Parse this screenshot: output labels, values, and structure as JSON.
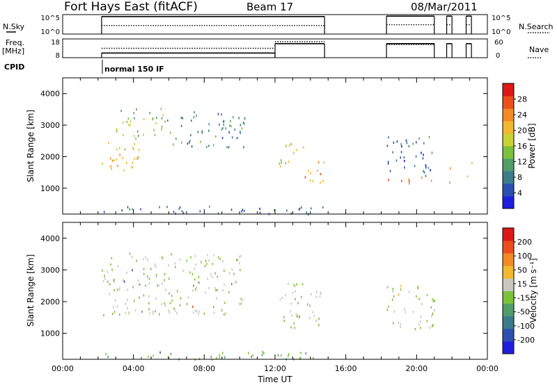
{
  "header": {
    "station": "Fort Hays East (fitACF)",
    "beam": "Beam 17",
    "date": "08/Mar/2011"
  },
  "left_labels": {
    "nsky": "N.Sky",
    "freq_top": "Freq.",
    "freq_bottom": "[MHz]",
    "cpid": "CPID",
    "cpid_value": "normal 150 IF"
  },
  "right_labels": {
    "nsearch": "N.Search",
    "nave": "Nave"
  },
  "chart_data": [
    {
      "type": "line",
      "title": "N.Sky / N.Search",
      "y_ticks_left": [
        "10^5",
        "10^0"
      ],
      "y_ticks_right": [
        "10^5",
        "10^0"
      ],
      "ylim_log10": [
        0,
        5
      ],
      "series": [
        {
          "name": "N.Sky",
          "style": "solid",
          "segments": [
            {
              "x": [
                2.2,
                14.8
              ],
              "y": [
                4.5,
                4.5
              ]
            },
            {
              "x": [
                18.3,
                21.0
              ],
              "y": [
                4.6,
                4.6
              ]
            },
            {
              "x": [
                21.7,
                22.0
              ],
              "y": [
                4.6,
                4.6
              ]
            },
            {
              "x": [
                22.8,
                23.1
              ],
              "y": [
                4.6,
                4.6
              ]
            }
          ]
        },
        {
          "name": "N.Search",
          "style": "dotted",
          "segments": [
            {
              "x": [
                2.2,
                14.8
              ],
              "y": [
                2.2,
                2.2
              ]
            },
            {
              "x": [
                18.3,
                21.0
              ],
              "y": [
                2.4,
                2.4
              ]
            },
            {
              "x": [
                21.7,
                22.0
              ],
              "y": [
                2.4,
                2.4
              ]
            },
            {
              "x": [
                22.8,
                23.1
              ],
              "y": [
                2.4,
                2.4
              ]
            }
          ]
        }
      ]
    },
    {
      "type": "line",
      "title": "Freq. / Nave",
      "y_ticks_left": [
        "18",
        "8"
      ],
      "y_ticks_right": [
        "60",
        "0"
      ],
      "ylim": [
        8,
        18
      ],
      "series": [
        {
          "name": "Freq.",
          "style": "solid",
          "segments": [
            {
              "x": [
                2.2,
                12.0
              ],
              "y": [
                10.5,
                10.5
              ]
            },
            {
              "x": [
                12.0,
                14.8
              ],
              "y": [
                15.5,
                15.5
              ]
            },
            {
              "x": [
                18.3,
                21.0
              ],
              "y": [
                15.5,
                15.5
              ]
            },
            {
              "x": [
                21.7,
                22.0
              ],
              "y": [
                15.5,
                15.5
              ]
            },
            {
              "x": [
                22.8,
                23.1
              ],
              "y": [
                15.5,
                15.5
              ]
            }
          ]
        },
        {
          "name": "Nave",
          "style": "dotted",
          "segments": [
            {
              "x": [
                2.2,
                12.0
              ],
              "y": [
                13.0,
                13.0
              ]
            },
            {
              "x": [
                12.0,
                14.8
              ],
              "y": [
                16.5,
                16.5
              ]
            },
            {
              "x": [
                18.3,
                21.0
              ],
              "y": [
                15.0,
                15.0
              ]
            }
          ]
        }
      ]
    },
    {
      "type": "heatmap",
      "panel": "power",
      "ylabel": "Slant Range [km]",
      "xlim": [
        0,
        24
      ],
      "ylim": [
        180,
        4500
      ],
      "y_ticks": [
        1000,
        2000,
        3000,
        4000
      ],
      "colorbar": {
        "label": "Power [dB]",
        "ticks": [
          "4",
          "8",
          "12",
          "16",
          "20",
          "24",
          "28"
        ],
        "range": [
          0,
          32
        ],
        "colors": [
          "#1f1fe0",
          "#2c4fb0",
          "#3a7c8c",
          "#4f9e6a",
          "#7cc13b",
          "#c9d234",
          "#f1b830",
          "#f48a27",
          "#ec4e1e",
          "#dd1818"
        ]
      },
      "bands": [
        {
          "t0": 2.2,
          "t1": 4.3,
          "r0": 1500,
          "r1": 2600,
          "p": 20
        },
        {
          "t0": 3.0,
          "t1": 6.2,
          "r0": 2600,
          "r1": 3550,
          "p": 14
        },
        {
          "t0": 6.2,
          "t1": 10.3,
          "r0": 2300,
          "r1": 3500,
          "p": 9
        },
        {
          "t0": 12.2,
          "t1": 13.6,
          "r0": 1700,
          "r1": 2500,
          "p": 18
        },
        {
          "t0": 13.6,
          "t1": 14.8,
          "r0": 1200,
          "r1": 2000,
          "p": 22
        },
        {
          "t0": 18.3,
          "t1": 20.9,
          "r0": 1150,
          "r1": 1400,
          "p": 24
        },
        {
          "t0": 18.3,
          "t1": 20.9,
          "r0": 1400,
          "r1": 2700,
          "p": 7
        },
        {
          "t0": 21.7,
          "t1": 21.9,
          "r0": 1200,
          "r1": 1900,
          "p": 20
        },
        {
          "t0": 22.8,
          "t1": 23.1,
          "r0": 1300,
          "r1": 2000,
          "p": 24
        },
        {
          "t0": 2.2,
          "t1": 14.8,
          "r0": 200,
          "r1": 450,
          "p": 6
        }
      ]
    },
    {
      "type": "heatmap",
      "panel": "velocity",
      "ylabel": "Slant Range [km]",
      "xlabel": "Time UT",
      "x_ticks": [
        "00:00",
        "04:00",
        "08:00",
        "12:00",
        "16:00",
        "20:00",
        "00:00"
      ],
      "xlim": [
        0,
        24
      ],
      "ylim": [
        180,
        4500
      ],
      "y_ticks": [
        1000,
        2000,
        3000,
        4000
      ],
      "colorbar": {
        "label": "Velocity [m s⁻¹]",
        "ticks": [
          "200",
          "100",
          "50",
          "15",
          "-15",
          "-50",
          "-100",
          "-200"
        ],
        "range": [
          -250,
          250
        ],
        "colors": [
          "#1f1fe0",
          "#2c4fb0",
          "#3a7c8c",
          "#4f9e6a",
          "#7cc13b",
          "#c8c8c0",
          "#f1b830",
          "#f48a27",
          "#ec4e1e",
          "#dd1818"
        ]
      },
      "bands": [
        {
          "t0": 2.2,
          "t1": 10.3,
          "r0": 1600,
          "r1": 3550,
          "v": 0
        },
        {
          "t0": 12.2,
          "t1": 14.8,
          "r0": 1200,
          "r1": 2600,
          "v": 0
        },
        {
          "t0": 18.3,
          "t1": 21.0,
          "r0": 1150,
          "r1": 2600,
          "v": 0
        },
        {
          "t0": 2.2,
          "t1": 14.8,
          "r0": 200,
          "r1": 450,
          "v": -40
        }
      ]
    }
  ]
}
